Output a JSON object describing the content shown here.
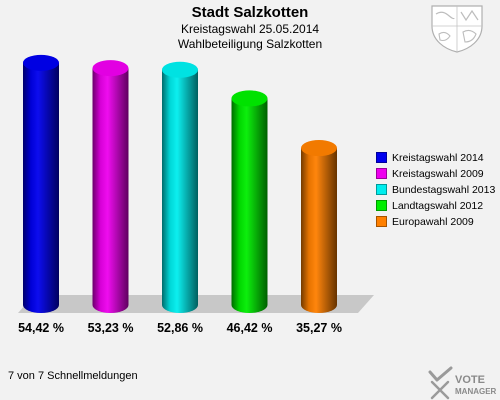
{
  "header": {
    "title": "Stadt Salzkotten",
    "subtitle": "Kreistagswahl 25.05.2014",
    "subtitle2": "Wahlbeteiligung Salzkotten"
  },
  "footer": {
    "text": "7 von 7 Schnellmeldungen"
  },
  "brand": {
    "logo_line1": "VOTE",
    "logo_line2": "MANAGER"
  },
  "chart_data": {
    "type": "bar",
    "categories": [
      "Kreistagswahl 2014",
      "Kreistagswahl 2009",
      "Bundestagswahl 2013",
      "Landtagswahl 2012",
      "Europawahl 2009"
    ],
    "values": [
      54.42,
      53.23,
      52.86,
      46.42,
      35.27
    ],
    "data_labels": [
      "54,42 %",
      "53,23 %",
      "52,86 %",
      "46,42 %",
      "35,27 %"
    ],
    "colors": [
      "#0000ee",
      "#ee00ee",
      "#00eeee",
      "#00ee00",
      "#ff8000"
    ],
    "legend": [
      "Kreistagswahl 2014",
      "Kreistagswahl 2009",
      "Bundestagswahl 2013",
      "Landtagswahl 2012",
      "Europawahl 2009"
    ],
    "legend_position": "right",
    "ylim": [
      0,
      60
    ],
    "grid": false,
    "style": "3d-cylinder"
  }
}
